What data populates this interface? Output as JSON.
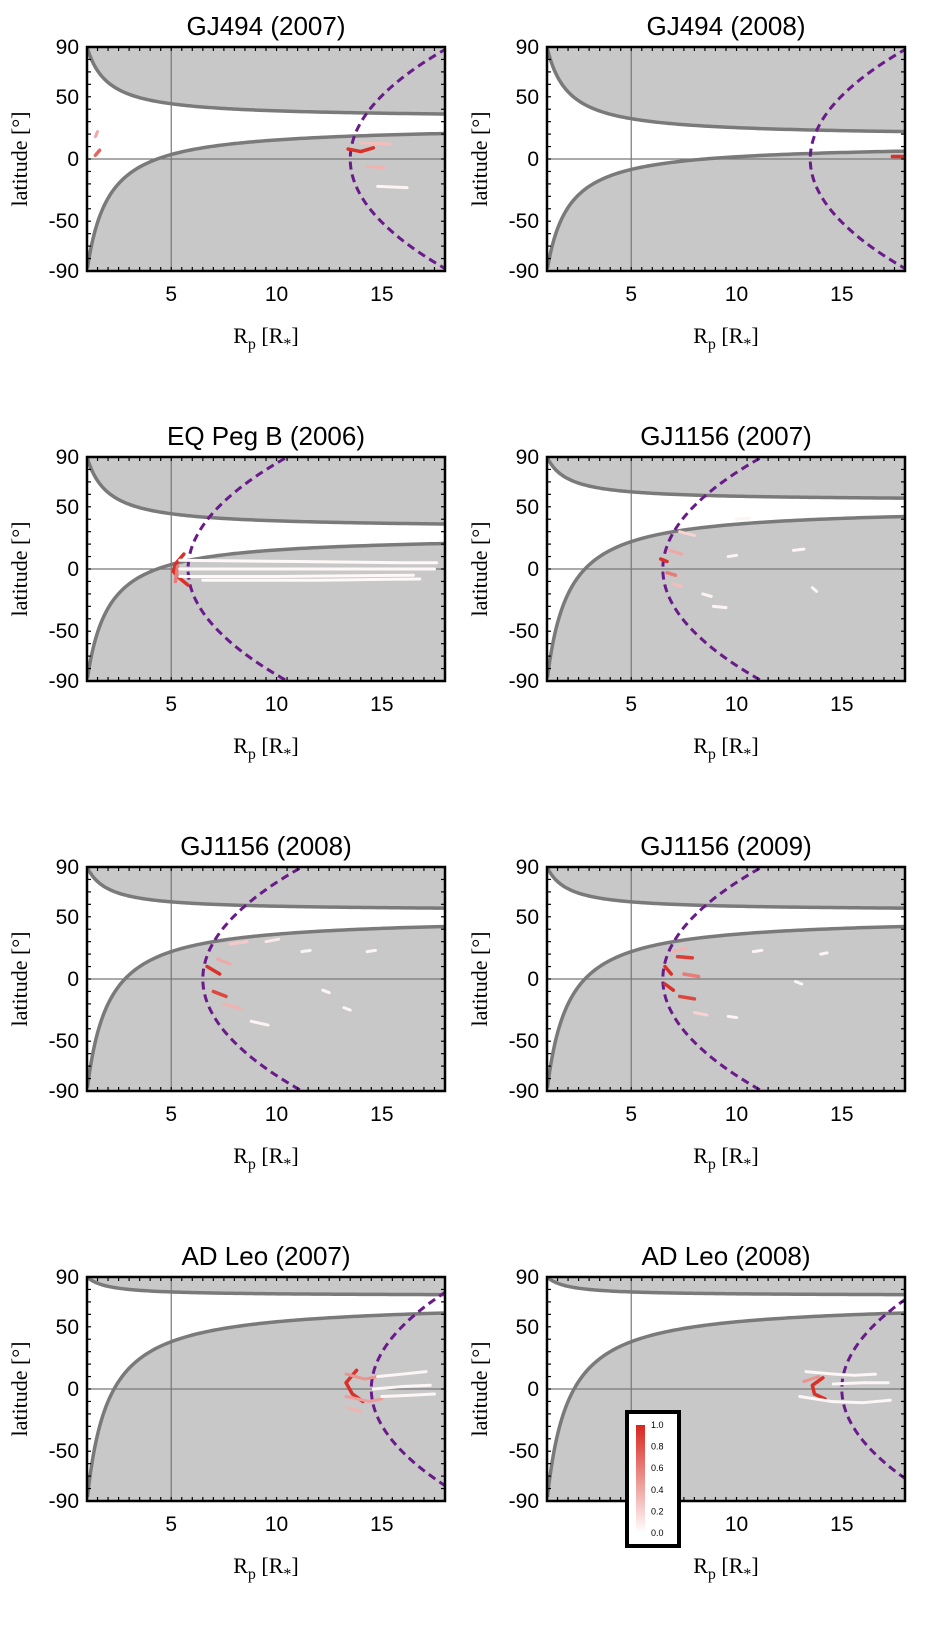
{
  "figure": {
    "xlabel_main": "R",
    "xlabel_sub": "p",
    "xlabel_unit_open": " [R",
    "xlabel_unit_sub": "*",
    "xlabel_unit_close": "]",
    "ylabel": "latitude [°]",
    "x_ticks": [
      "5",
      "10",
      "15"
    ],
    "y_ticks": [
      "90",
      "50",
      "0",
      "-50",
      "-90"
    ]
  },
  "colorbar": {
    "ticks": [
      "1.0",
      "0.8",
      "0.6",
      "0.4",
      "0.2",
      "0.0"
    ],
    "color_low": "#ffffff",
    "color_high": "#d7261e"
  },
  "colors": {
    "shade": "#c8c8c8",
    "boundary": "#7a7a7a",
    "dashed": "#6a1b8a",
    "emission_high": "#d7261e"
  },
  "chart_data": [
    {
      "type": "scatter",
      "title": "GJ494 (2007)",
      "xlim": [
        1,
        18
      ],
      "ylim": [
        -90,
        90
      ],
      "grid": false,
      "boundary": {
        "upper_asymptote": 33,
        "lower_asymptote": 27
      },
      "dashed_vertex": 13.5,
      "emission": [
        {
          "x": [
            13.4,
            14.0,
            14.6
          ],
          "y": [
            8,
            6,
            9
          ],
          "w": 0.95
        },
        {
          "x": [
            14.0,
            15.4
          ],
          "y": [
            13,
            12
          ],
          "w": 0.3
        },
        {
          "x": [
            14.3,
            15.1
          ],
          "y": [
            -6,
            -7
          ],
          "w": 0.35
        },
        {
          "x": [
            14.8,
            16.2
          ],
          "y": [
            -22,
            -23
          ],
          "w": 0.05
        },
        {
          "x": [
            1.4,
            1.6
          ],
          "y": [
            3,
            7
          ],
          "w": 0.7
        },
        {
          "x": [
            1.4,
            1.5
          ],
          "y": [
            18,
            22
          ],
          "w": 0.4
        }
      ]
    },
    {
      "type": "scatter",
      "title": "GJ494 (2008)",
      "xlim": [
        1,
        18
      ],
      "ylim": [
        -90,
        90
      ],
      "grid": false,
      "boundary": {
        "upper_asymptote": 18,
        "lower_asymptote": 12
      },
      "dashed_vertex": 13.5,
      "emission": [
        {
          "x": [
            17.4,
            18.0
          ],
          "y": [
            2,
            2
          ],
          "w": 0.95
        }
      ]
    },
    {
      "type": "scatter",
      "title": "EQ Peg B (2006)",
      "xlim": [
        1,
        18
      ],
      "ylim": [
        -90,
        90
      ],
      "grid": false,
      "boundary": {
        "upper_asymptote": 33,
        "lower_asymptote": 27
      },
      "dashed_vertex": 5.8,
      "emission": [
        {
          "x": [
            5.6,
            5.2,
            5.1,
            5.3,
            5.8
          ],
          "y": [
            12,
            4,
            -2,
            -6,
            -13
          ],
          "w": 0.95
        },
        {
          "x": [
            5.3,
            5.2
          ],
          "y": [
            2,
            -10
          ],
          "w": 0.6
        },
        {
          "x": [
            5.4,
            11.0,
            16.0,
            17.6
          ],
          "y": [
            7,
            6,
            5,
            5
          ],
          "w": 0.03
        },
        {
          "x": [
            5.4,
            12.0,
            17.5
          ],
          "y": [
            0,
            0,
            0
          ],
          "w": 0.03
        },
        {
          "x": [
            5.4,
            10.0,
            16.5
          ],
          "y": [
            -6,
            -6,
            -5
          ],
          "w": 0.03
        },
        {
          "x": [
            6.5,
            12.0,
            16.8
          ],
          "y": [
            -9,
            -9,
            -8
          ],
          "w": 0.03
        }
      ]
    },
    {
      "type": "scatter",
      "title": "GJ1156 (2007)",
      "xlim": [
        1,
        18
      ],
      "ylim": [
        -90,
        90
      ],
      "grid": false,
      "boundary": {
        "upper_asymptote": 55,
        "lower_asymptote": 50
      },
      "dashed_vertex": 6.5,
      "emission": [
        {
          "x": [
            6.4,
            6.7
          ],
          "y": [
            8,
            6
          ],
          "w": 0.95
        },
        {
          "x": [
            6.8,
            7.4
          ],
          "y": [
            15,
            12
          ],
          "w": 0.4
        },
        {
          "x": [
            6.7,
            7.1
          ],
          "y": [
            -3,
            -5
          ],
          "w": 0.6
        },
        {
          "x": [
            7.0,
            7.4
          ],
          "y": [
            -12,
            -14
          ],
          "w": 0.3
        },
        {
          "x": [
            7.3,
            8.0
          ],
          "y": [
            30,
            27
          ],
          "w": 0.2
        },
        {
          "x": [
            10.0,
            10.6
          ],
          "y": [
            40,
            41
          ],
          "w": 0.05
        },
        {
          "x": [
            8.4,
            8.8
          ],
          "y": [
            -20,
            -22
          ],
          "w": 0.05
        },
        {
          "x": [
            8.9,
            9.5
          ],
          "y": [
            -30,
            -31
          ],
          "w": 0.05
        },
        {
          "x": [
            12.7,
            13.2
          ],
          "y": [
            15,
            16
          ],
          "w": 0.05
        },
        {
          "x": [
            13.6,
            13.8
          ],
          "y": [
            -15,
            -18
          ],
          "w": 0.05
        },
        {
          "x": [
            9.6,
            10.0
          ],
          "y": [
            10,
            11
          ],
          "w": 0.05
        }
      ]
    },
    {
      "type": "scatter",
      "title": "GJ1156 (2008)",
      "xlim": [
        1,
        18
      ],
      "ylim": [
        -90,
        90
      ],
      "grid": false,
      "boundary": {
        "upper_asymptote": 55,
        "lower_asymptote": 50
      },
      "dashed_vertex": 6.5,
      "emission": [
        {
          "x": [
            6.7,
            7.3
          ],
          "y": [
            10,
            4
          ],
          "w": 0.95
        },
        {
          "x": [
            7.0,
            7.6
          ],
          "y": [
            -10,
            -14
          ],
          "w": 0.85
        },
        {
          "x": [
            7.2,
            7.8
          ],
          "y": [
            16,
            12
          ],
          "w": 0.4
        },
        {
          "x": [
            7.5,
            8.3
          ],
          "y": [
            -20,
            -24
          ],
          "w": 0.35
        },
        {
          "x": [
            7.8,
            8.6
          ],
          "y": [
            28,
            30
          ],
          "w": 0.25
        },
        {
          "x": [
            9.5,
            10.1
          ],
          "y": [
            30,
            32
          ],
          "w": 0.1
        },
        {
          "x": [
            8.8,
            9.6
          ],
          "y": [
            -34,
            -37
          ],
          "w": 0.05
        },
        {
          "x": [
            12.2,
            12.5
          ],
          "y": [
            -9,
            -11
          ],
          "w": 0.05
        },
        {
          "x": [
            13.2,
            13.5
          ],
          "y": [
            -23,
            -25
          ],
          "w": 0.05
        },
        {
          "x": [
            14.3,
            14.7
          ],
          "y": [
            22,
            23
          ],
          "w": 0.05
        },
        {
          "x": [
            11.2,
            11.6
          ],
          "y": [
            22,
            23
          ],
          "w": 0.05
        }
      ]
    },
    {
      "type": "scatter",
      "title": "GJ1156 (2009)",
      "xlim": [
        1,
        18
      ],
      "ylim": [
        -90,
        90
      ],
      "grid": false,
      "boundary": {
        "upper_asymptote": 55,
        "lower_asymptote": 50
      },
      "dashed_vertex": 6.5,
      "emission": [
        {
          "x": [
            6.6,
            6.9
          ],
          "y": [
            10,
            4
          ],
          "w": 0.95
        },
        {
          "x": [
            6.6,
            7.0
          ],
          "y": [
            -4,
            -9
          ],
          "w": 0.95
        },
        {
          "x": [
            7.2,
            7.9
          ],
          "y": [
            18,
            17
          ],
          "w": 0.9
        },
        {
          "x": [
            7.3,
            8.0
          ],
          "y": [
            -14,
            -16
          ],
          "w": 0.85
        },
        {
          "x": [
            7.5,
            8.2
          ],
          "y": [
            4,
            2
          ],
          "w": 0.6
        },
        {
          "x": [
            7.0,
            7.6
          ],
          "y": [
            22,
            25
          ],
          "w": 0.35
        },
        {
          "x": [
            8.0,
            8.6
          ],
          "y": [
            -27,
            -29
          ],
          "w": 0.2
        },
        {
          "x": [
            9.6,
            10.0
          ],
          "y": [
            -30,
            -31
          ],
          "w": 0.05
        },
        {
          "x": [
            10.8,
            11.2
          ],
          "y": [
            22,
            23
          ],
          "w": 0.05
        },
        {
          "x": [
            12.8,
            13.1
          ],
          "y": [
            -2,
            -4
          ],
          "w": 0.05
        },
        {
          "x": [
            14.0,
            14.3
          ],
          "y": [
            20,
            21
          ],
          "w": 0.05
        }
      ]
    },
    {
      "type": "scatter",
      "title": "AD Leo (2007)",
      "xlim": [
        1,
        18
      ],
      "ylim": [
        -90,
        90
      ],
      "grid": false,
      "boundary": {
        "upper_asymptote": 75,
        "lower_asymptote": 70
      },
      "dashed_vertex": 14.5,
      "emission": [
        {
          "x": [
            13.8,
            13.3,
            13.6,
            14.1
          ],
          "y": [
            15,
            5,
            -4,
            -10
          ],
          "w": 0.95
        },
        {
          "x": [
            13.3,
            14.2,
            14.8
          ],
          "y": [
            12,
            8,
            10
          ],
          "w": 0.5
        },
        {
          "x": [
            13.3,
            14.4,
            15.0
          ],
          "y": [
            -6,
            -10,
            -8
          ],
          "w": 0.45
        },
        {
          "x": [
            13.4,
            14.0
          ],
          "y": [
            -15,
            -18
          ],
          "w": 0.35
        },
        {
          "x": [
            14.8,
            16.0,
            17.1
          ],
          "y": [
            10,
            12,
            14
          ],
          "w": 0.04
        },
        {
          "x": [
            14.6,
            16.0,
            17.3
          ],
          "y": [
            0,
            2,
            3
          ],
          "w": 0.04
        },
        {
          "x": [
            15.0,
            16.4,
            17.5
          ],
          "y": [
            -6,
            -5,
            -4
          ],
          "w": 0.04
        }
      ]
    },
    {
      "type": "scatter",
      "title": "AD Leo (2008)",
      "xlim": [
        1,
        18
      ],
      "ylim": [
        -90,
        90
      ],
      "grid": false,
      "boundary": {
        "upper_asymptote": 75,
        "lower_asymptote": 70
      },
      "dashed_vertex": 15.0,
      "emission": [
        {
          "x": [
            14.1,
            13.6,
            13.7,
            14.2
          ],
          "y": [
            9,
            3,
            -4,
            -8
          ],
          "w": 0.95
        },
        {
          "x": [
            13.2,
            13.9
          ],
          "y": [
            6,
            10
          ],
          "w": 0.5
        },
        {
          "x": [
            13.3,
            14.6,
            15.6,
            16.6
          ],
          "y": [
            14,
            12,
            11,
            12
          ],
          "w": 0.04
        },
        {
          "x": [
            13.0,
            14.5,
            16.0,
            17.3
          ],
          "y": [
            -6,
            -10,
            -11,
            -9
          ],
          "w": 0.04
        },
        {
          "x": [
            14.6,
            16.0,
            17.2
          ],
          "y": [
            4,
            5,
            5
          ],
          "w": 0.04
        }
      ]
    }
  ]
}
